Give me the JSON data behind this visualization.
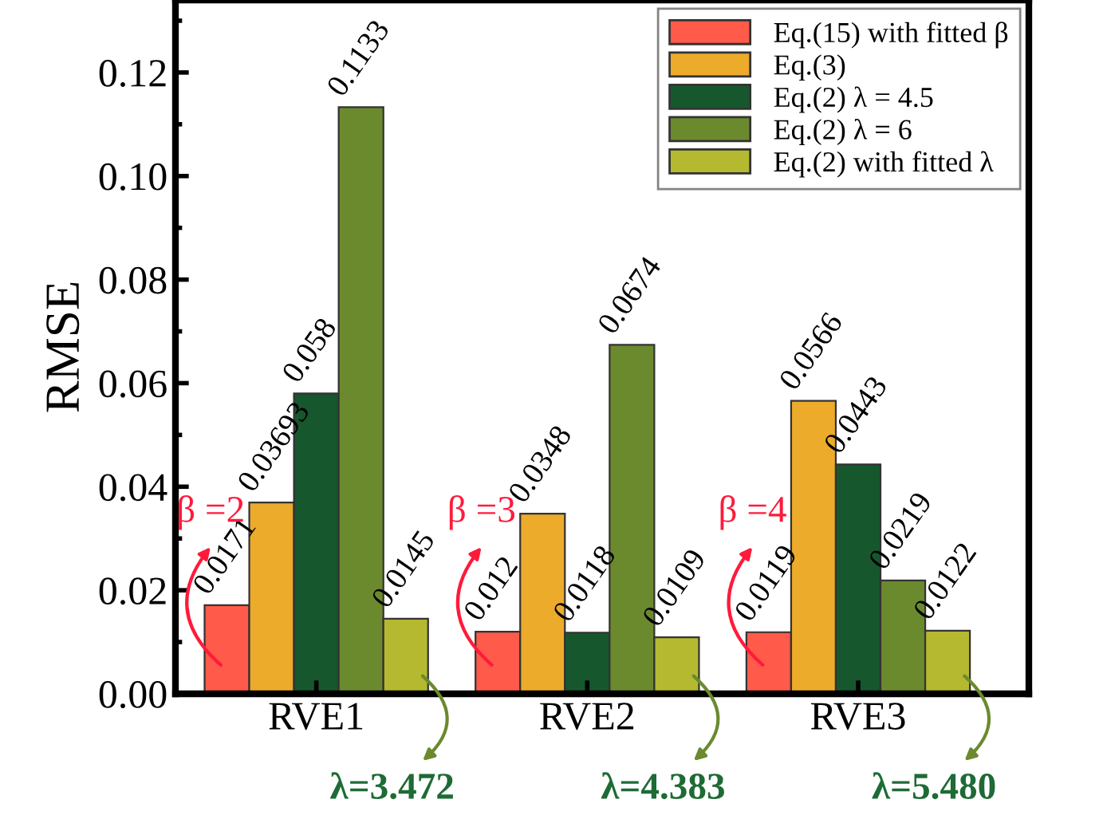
{
  "chart_data": {
    "type": "bar",
    "ylabel": "RMSE",
    "categories": [
      "RVE1",
      "RVE2",
      "RVE3"
    ],
    "series": [
      {
        "name": "Eq.(15) with fitted β",
        "color": "#ff5a4a",
        "values": [
          0.0171,
          0.012,
          0.0119
        ]
      },
      {
        "name": "Eq.(3)",
        "color": "#ecab2b",
        "values": [
          0.03693,
          0.0348,
          0.0566
        ]
      },
      {
        "name": "Eq.(2) λ = 4.5",
        "color": "#17572d",
        "values": [
          0.058,
          0.0118,
          0.0443
        ]
      },
      {
        "name": "Eq.(2) λ = 6",
        "color": "#6b8a2e",
        "values": [
          0.1133,
          0.0674,
          0.0219
        ]
      },
      {
        "name": "Eq.(2) with fitted λ",
        "color": "#b5b92f",
        "values": [
          0.0145,
          0.0109,
          0.0122
        ]
      }
    ],
    "ylim": [
      0,
      0.134
    ],
    "yticks": [
      {
        "value": 0,
        "label": "0.00"
      },
      {
        "value": 0.02,
        "label": "0.02"
      },
      {
        "value": 0.04,
        "label": "0.04"
      },
      {
        "value": 0.06,
        "label": "0.06"
      },
      {
        "value": 0.08,
        "label": "0.08"
      },
      {
        "value": 0.1,
        "label": "0.10"
      },
      {
        "value": 0.12,
        "label": "0.12"
      }
    ],
    "data_labels": true,
    "legend": "top right",
    "grid": false,
    "annotations": [
      "β =2",
      "β =3",
      "β =4",
      "λ=3.472",
      "λ=4.383",
      "λ=5.480"
    ]
  }
}
